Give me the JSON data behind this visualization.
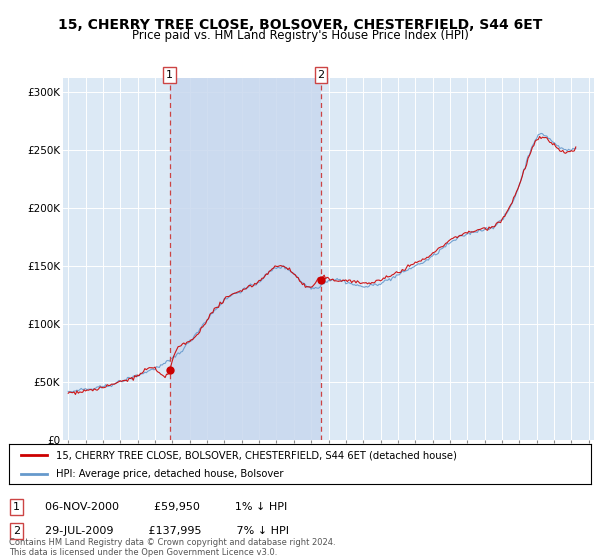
{
  "title": "15, CHERRY TREE CLOSE, BOLSOVER, CHESTERFIELD, S44 6ET",
  "subtitle": "Price paid vs. HM Land Registry's House Price Index (HPI)",
  "bg_color": "#dce9f5",
  "outer_bg_color": "#ffffff",
  "red_line_color": "#cc0000",
  "blue_line_color": "#6699cc",
  "fill_color": "#c8d8ee",
  "vline_color": "#cc4444",
  "sale1_year": 2000.84,
  "sale1_price": 59950,
  "sale2_year": 2009.57,
  "sale2_price": 137995,
  "xmin": 1994.7,
  "xmax": 2025.3,
  "ymin": 0,
  "ymax": 310000,
  "yticks": [
    0,
    50000,
    100000,
    150000,
    200000,
    250000,
    300000
  ],
  "ytick_labels": [
    "£0",
    "£50K",
    "£100K",
    "£150K",
    "£200K",
    "£250K",
    "£300K"
  ],
  "xticks": [
    1995,
    1996,
    1997,
    1998,
    1999,
    2000,
    2001,
    2002,
    2003,
    2004,
    2005,
    2006,
    2007,
    2008,
    2009,
    2010,
    2011,
    2012,
    2013,
    2014,
    2015,
    2016,
    2017,
    2018,
    2019,
    2020,
    2021,
    2022,
    2023,
    2024,
    2025
  ],
  "legend_label_red": "15, CHERRY TREE CLOSE, BOLSOVER, CHESTERFIELD, S44 6ET (detached house)",
  "legend_label_blue": "HPI: Average price, detached house, Bolsover",
  "annotation1_text": "06-NOV-2000          £59,950          1% ↓ HPI",
  "annotation2_text": "29-JUL-2009          £137,995          7% ↓ HPI",
  "footer": "Contains HM Land Registry data © Crown copyright and database right 2024.\nThis data is licensed under the Open Government Licence v3.0."
}
